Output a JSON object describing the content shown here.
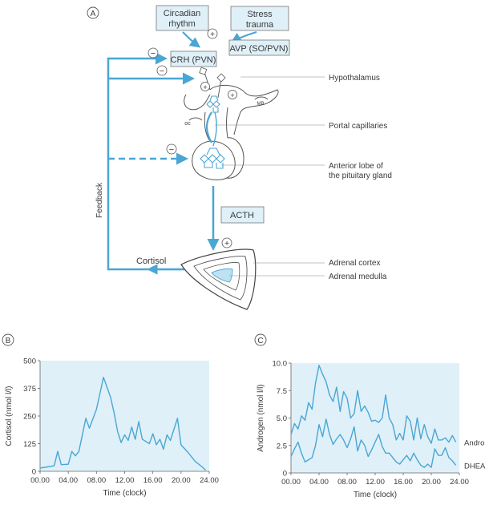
{
  "panel_a": {
    "letter": "A",
    "circadian_line1": "Circadian",
    "circadian_line2": "rhythm",
    "stress_line1": "Stress",
    "stress_line2": "trauma",
    "crh": "CRH (PVN)",
    "avp": "AVP (SO/PVN)",
    "acth": "ACTH",
    "cortisol": "Cortisol",
    "feedback": "Feedback",
    "hypothalamus": "Hypothalamus",
    "portal_capillaries": "Portal capillaries",
    "anterior_line1": "Anterior lobe of",
    "anterior_line2": "the pituitary gland",
    "adrenal_cortex": "Adrenal cortex",
    "adrenal_medulla": "Adrenal medulla",
    "mb": "MB",
    "oc": "oc",
    "plus": "+",
    "minus": "−"
  },
  "panel_b": {
    "letter": "B",
    "chart_data": {
      "type": "line",
      "xlabel": "Time (clock)",
      "ylabel": "Cortisol (nmol l/l)",
      "xlim": [
        0,
        24
      ],
      "ylim": [
        0,
        500
      ],
      "x_ticks": [
        "00.00",
        "04.00",
        "08.00",
        "12.00",
        "16.00",
        "20.00",
        "24.00"
      ],
      "y_ticks": [
        "0",
        "125",
        "250",
        "375",
        "500"
      ],
      "series": [
        {
          "color": "#4aa6d4",
          "x": [
            0,
            1.0,
            2.0,
            2.5,
            3.0,
            4.0,
            4.5,
            5.0,
            5.5,
            6.5,
            7.0,
            8.0,
            9.0,
            10.0,
            10.5,
            11.0,
            11.5,
            12.0,
            12.5,
            13.0,
            13.5,
            14.0,
            14.5,
            15.0,
            15.5,
            16.0,
            16.5,
            17.0,
            17.5,
            18.0,
            18.5,
            19.0,
            19.5,
            20.0,
            21.0,
            22.0,
            23.0,
            23.5
          ],
          "y": [
            15,
            20,
            25,
            90,
            30,
            32,
            90,
            70,
            90,
            240,
            195,
            280,
            425,
            335,
            265,
            180,
            130,
            165,
            140,
            200,
            145,
            225,
            145,
            135,
            125,
            170,
            120,
            145,
            100,
            165,
            140,
            190,
            240,
            120,
            85,
            45,
            20,
            5
          ]
        }
      ]
    }
  },
  "panel_c": {
    "letter": "C",
    "chart_data": {
      "type": "line",
      "xlabel": "Time (clock)",
      "ylabel": "Androgen (nmol l/l)",
      "xlim": [
        0,
        24
      ],
      "ylim": [
        0,
        10
      ],
      "x_ticks": [
        "00.00",
        "04.00",
        "08.00",
        "12.00",
        "16.00",
        "20.00",
        "24.00"
      ],
      "y_ticks": [
        "0",
        "2.5",
        "5.0",
        "7.5",
        "10.0"
      ],
      "series": [
        {
          "name": "Andro",
          "color": "#4aa6d4",
          "x": [
            0,
            0.5,
            1.0,
            1.5,
            2.0,
            2.5,
            3.0,
            3.5,
            4.0,
            4.5,
            5.0,
            5.5,
            6.0,
            6.5,
            7.0,
            7.5,
            8.0,
            8.5,
            9.0,
            9.5,
            10.0,
            10.5,
            11.0,
            11.5,
            12.0,
            12.5,
            13.0,
            13.5,
            14.0,
            14.5,
            15.0,
            15.5,
            16.0,
            16.5,
            17.0,
            17.5,
            18.0,
            18.5,
            19.0,
            19.5,
            20.0,
            20.5,
            21.0,
            21.5,
            22.0,
            22.5,
            23.0,
            23.5
          ],
          "y": [
            3.5,
            4.5,
            4.0,
            5.2,
            4.8,
            6.4,
            5.8,
            8.2,
            9.8,
            9.0,
            8.3,
            7.1,
            6.5,
            7.8,
            5.6,
            7.4,
            6.8,
            5.0,
            5.4,
            7.5,
            5.6,
            6.1,
            5.5,
            4.7,
            4.8,
            4.6,
            5.0,
            7.1,
            5.0,
            4.4,
            3.0,
            3.6,
            3.0,
            5.2,
            4.7,
            3.0,
            5.0,
            3.1,
            4.4,
            3.3,
            2.7,
            4.0,
            3.0,
            3.0,
            3.2,
            2.8,
            3.4,
            2.8
          ]
        },
        {
          "name": "DHEA",
          "color": "#4aa6d4",
          "x": [
            0,
            0.5,
            1.0,
            1.5,
            2.0,
            2.5,
            3.0,
            3.5,
            4.0,
            4.5,
            5.0,
            5.5,
            6.0,
            6.5,
            7.0,
            7.5,
            8.0,
            8.5,
            9.0,
            9.5,
            10.0,
            10.5,
            11.0,
            11.5,
            12.0,
            12.5,
            13.0,
            13.5,
            14.0,
            14.5,
            15.0,
            15.5,
            16.0,
            16.5,
            17.0,
            17.5,
            18.0,
            18.5,
            19.0,
            19.5,
            20.0,
            20.5,
            21.0,
            21.5,
            22.0,
            22.5,
            23.0,
            23.5
          ],
          "y": [
            1.5,
            2.2,
            2.8,
            1.8,
            1.0,
            1.2,
            1.4,
            2.5,
            4.4,
            3.3,
            4.9,
            3.5,
            2.6,
            3.1,
            3.5,
            3.0,
            2.3,
            3.1,
            4.2,
            2.0,
            3.0,
            2.5,
            1.5,
            2.1,
            2.8,
            3.5,
            2.4,
            1.8,
            1.8,
            1.4,
            1.0,
            0.8,
            1.2,
            1.6,
            1.1,
            1.8,
            1.2,
            0.7,
            0.5,
            0.8,
            0.5,
            2.2,
            1.6,
            1.6,
            2.3,
            1.4,
            1.1,
            0.7
          ]
        }
      ]
    }
  }
}
